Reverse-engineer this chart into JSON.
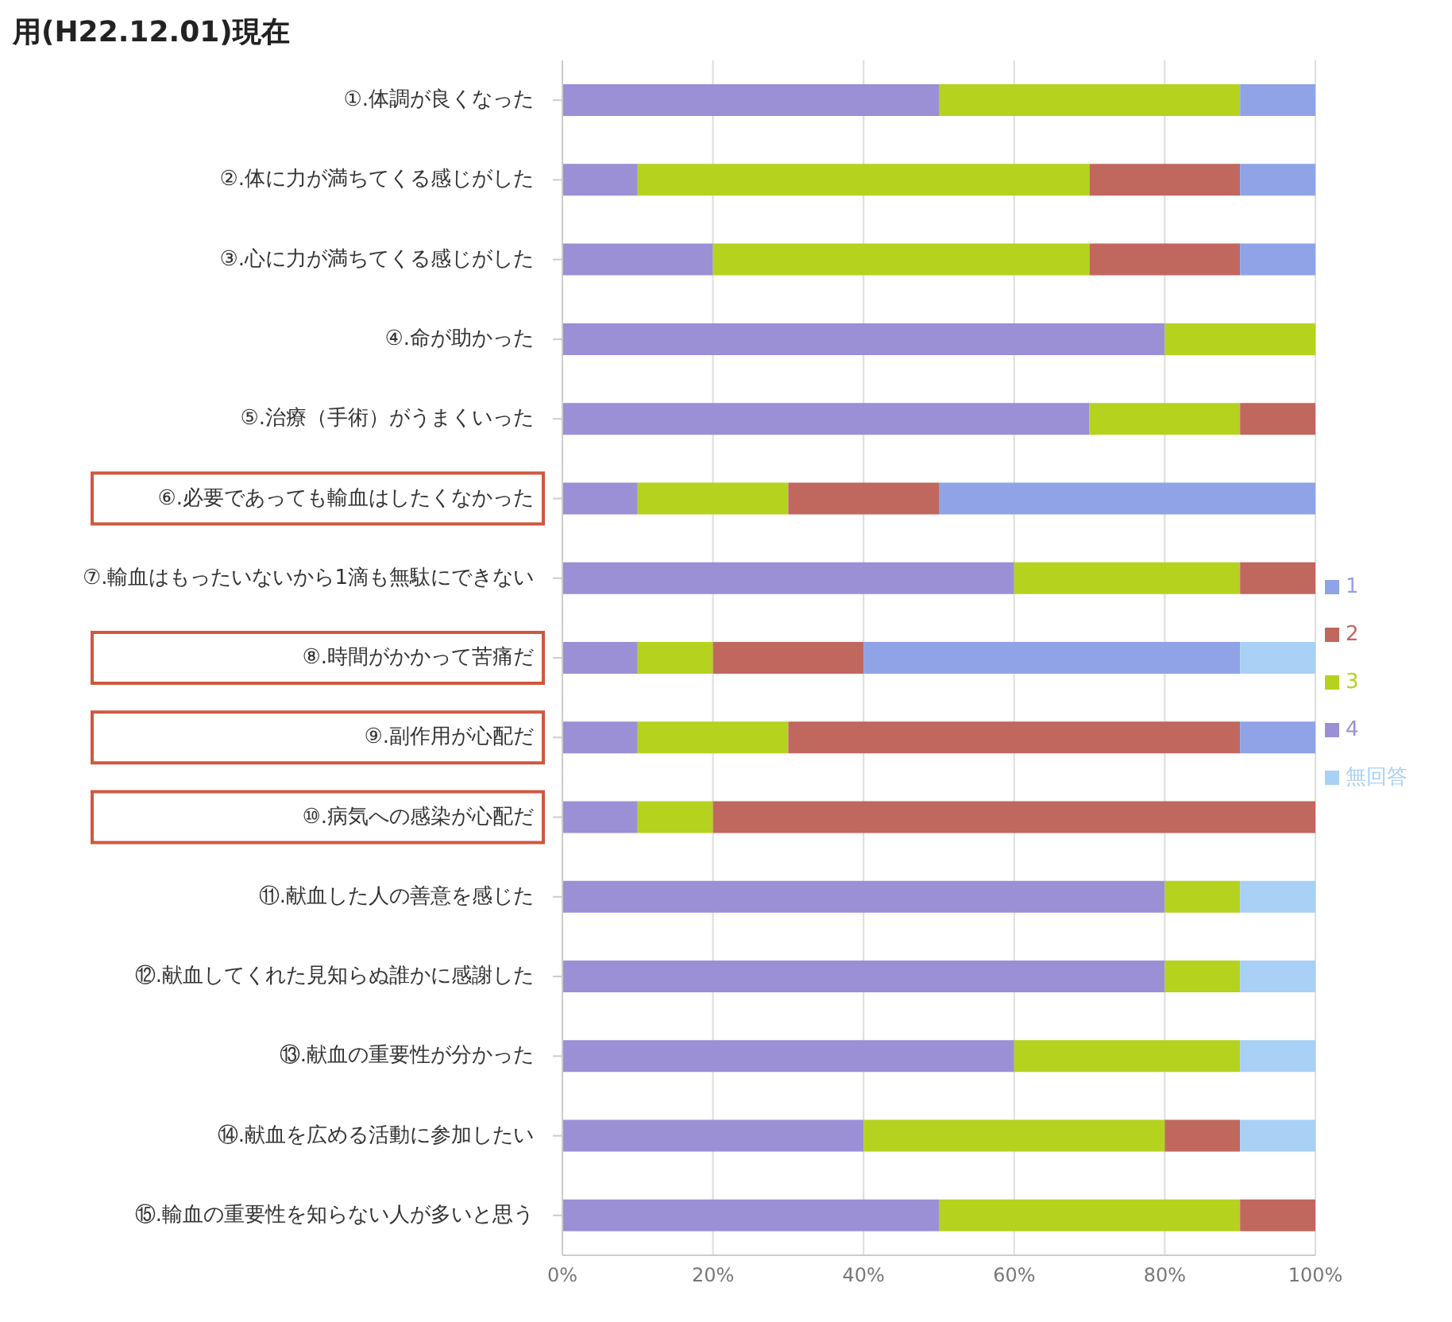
{
  "chart_data": {
    "type": "bar",
    "orientation": "horizontal",
    "stacked": true,
    "title": "用(H22.12.01)現在",
    "categories": [
      "①.体調が良くなった",
      "②.体に力が満ちてくる感じがした",
      "③.心に力が満ちてくる感じがした",
      "④.命が助かった",
      "⑤.治療（手術）がうまくいった",
      "⑥.必要であっても輸血はしたくなかった",
      "⑦.輸血はもったいないから1滴も無駄にできない",
      "⑧.時間がかかって苦痛だ",
      "⑨.副作用が心配だ",
      "⑩.病気への感染が心配だ",
      "⑪.献血した人の善意を感じた",
      "⑫.献血してくれた見知らぬ誰かに感謝した",
      "⑬.献血の重要性が分かった",
      "⑭.献血を広める活動に参加したい",
      "⑮.輸血の重要性を知らない人が多いと思う"
    ],
    "series": [
      {
        "name": "4",
        "color": "#9b8fd6",
        "values": [
          50,
          10,
          20,
          80,
          70,
          10,
          60,
          10,
          10,
          10,
          80,
          80,
          60,
          40,
          50
        ]
      },
      {
        "name": "3",
        "color": "#b5d21f",
        "values": [
          40,
          60,
          50,
          20,
          20,
          20,
          30,
          10,
          20,
          10,
          10,
          10,
          30,
          40,
          40
        ]
      },
      {
        "name": "2",
        "color": "#c0675e",
        "values": [
          0,
          20,
          20,
          0,
          10,
          20,
          10,
          20,
          60,
          80,
          0,
          0,
          0,
          10,
          10
        ]
      },
      {
        "name": "1",
        "color": "#8fa3e6",
        "values": [
          10,
          10,
          10,
          0,
          0,
          50,
          0,
          50,
          10,
          0,
          0,
          0,
          0,
          0,
          0
        ]
      },
      {
        "name": "無回答",
        "color": "#a9d0f5",
        "values": [
          0,
          0,
          0,
          0,
          0,
          0,
          0,
          10,
          0,
          0,
          10,
          10,
          10,
          10,
          0
        ]
      }
    ],
    "xlim": [
      0,
      100
    ],
    "xticks": [
      {
        "value": 0,
        "label": "0%"
      },
      {
        "value": 20,
        "label": "20%"
      },
      {
        "value": 40,
        "label": "40%"
      },
      {
        "value": 60,
        "label": "60%"
      },
      {
        "value": 80,
        "label": "80%"
      },
      {
        "value": 100,
        "label": "100%"
      }
    ],
    "grid": "x",
    "legend": "right"
  }
}
